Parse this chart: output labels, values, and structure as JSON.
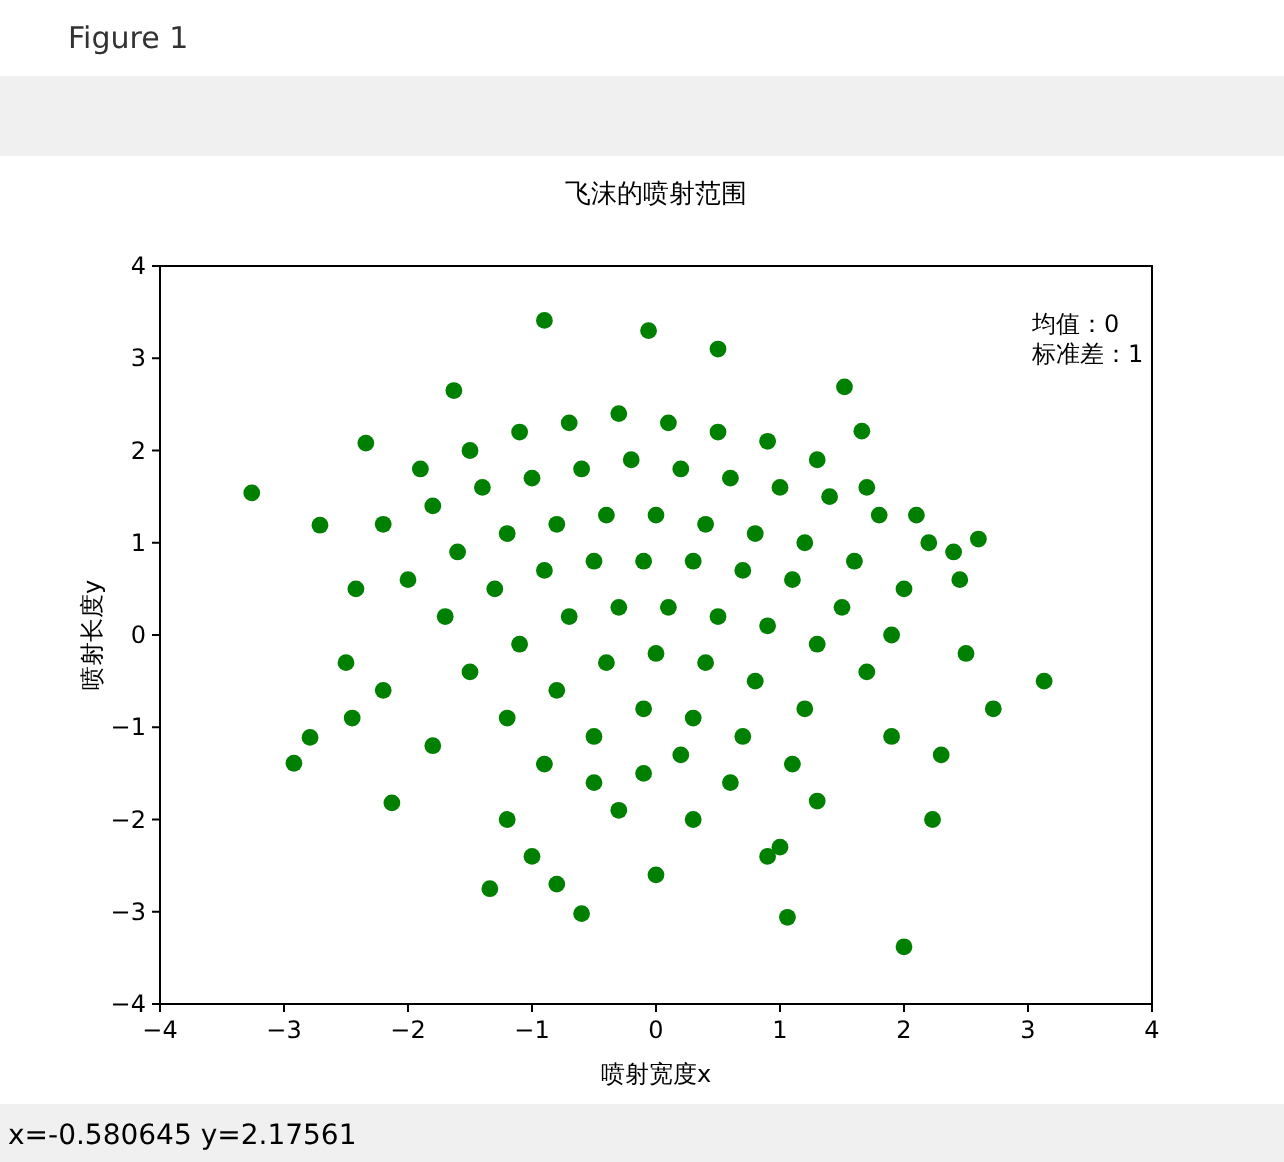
{
  "chart_data": {
    "type": "scatter",
    "title": "飞沫的喷射范围",
    "xlabel": "喷射宽度x",
    "ylabel": "喷射长度y",
    "annotations": [
      "均值：0",
      "标准差：1",
      "Figure 1",
      "x=-0.580645    y=2.17561"
    ],
    "xlim": [
      -4,
      4
    ],
    "ylim": [
      -4,
      4
    ],
    "xticks": [
      -4,
      -3,
      -2,
      -1,
      0,
      1,
      2,
      3,
      4
    ],
    "yticks": [
      -4,
      -3,
      -2,
      -1,
      0,
      1,
      2,
      3,
      4
    ],
    "grid": false,
    "marker": "circle",
    "series": [
      {
        "color": "#008000",
        "x": [
          -3.26,
          -2.92,
          -2.34,
          -0.9,
          -0.06,
          0.5,
          1.52,
          1.66,
          2.6,
          3.13,
          2.0,
          1.06,
          -0.6,
          -1.34,
          -2.13,
          -2.79,
          -2.71,
          2.23,
          2.72,
          -1.63,
          -2.42,
          -1.9,
          -1.5,
          -1.1,
          -0.7,
          -0.3,
          0.1,
          0.5,
          0.9,
          1.3,
          1.7,
          2.1,
          2.4,
          -2.2,
          -1.8,
          -1.4,
          -1.0,
          -0.6,
          -0.2,
          0.2,
          0.6,
          1.0,
          1.4,
          1.8,
          2.2,
          -2.0,
          -1.6,
          -1.2,
          -0.8,
          -0.4,
          0.0,
          0.4,
          0.8,
          1.2,
          1.6,
          2.0,
          -1.7,
          -1.3,
          -0.9,
          -0.5,
          -0.1,
          0.3,
          0.7,
          1.1,
          1.5,
          1.9,
          -1.5,
          -1.1,
          -0.7,
          -0.3,
          0.1,
          0.5,
          0.9,
          1.3,
          1.7,
          -1.2,
          -0.8,
          -0.4,
          0.0,
          0.4,
          0.8,
          1.2,
          -0.9,
          -0.5,
          -0.1,
          0.3,
          0.7,
          1.1,
          -2.5,
          2.5,
          -2.45,
          2.45,
          -1.0,
          1.0,
          0.0,
          -0.3,
          0.3,
          -1.2,
          1.3,
          -0.1,
          0.2,
          -0.5,
          0.6,
          -1.8,
          1.9,
          -2.2,
          2.3,
          -0.8,
          0.9
        ],
        "values": [
          1.54,
          -1.39,
          2.08,
          3.41,
          3.3,
          3.1,
          2.69,
          2.21,
          1.04,
          -0.5,
          -3.38,
          -3.06,
          -3.02,
          -2.75,
          -1.82,
          -1.11,
          1.19,
          -2.0,
          -0.8,
          2.65,
          0.5,
          1.8,
          2.0,
          2.2,
          2.3,
          2.4,
          2.3,
          2.2,
          2.1,
          1.9,
          1.6,
          1.3,
          0.9,
          1.2,
          1.4,
          1.6,
          1.7,
          1.8,
          1.9,
          1.8,
          1.7,
          1.6,
          1.5,
          1.3,
          1.0,
          0.6,
          0.9,
          1.1,
          1.2,
          1.3,
          1.3,
          1.2,
          1.1,
          1.0,
          0.8,
          0.5,
          0.2,
          0.5,
          0.7,
          0.8,
          0.8,
          0.8,
          0.7,
          0.6,
          0.3,
          0.0,
          -0.4,
          -0.1,
          0.2,
          0.3,
          0.3,
          0.2,
          0.1,
          -0.1,
          -0.4,
          -0.9,
          -0.6,
          -0.3,
          -0.2,
          -0.3,
          -0.5,
          -0.8,
          -1.4,
          -1.1,
          -0.8,
          -0.9,
          -1.1,
          -1.4,
          -0.3,
          -0.2,
          -0.9,
          0.6,
          -2.4,
          -2.3,
          -2.6,
          -1.9,
          -2.0,
          -2.0,
          -1.8,
          -1.5,
          -1.3,
          -1.6,
          -1.6,
          -1.2,
          -1.1,
          -0.6,
          -1.3,
          -2.7,
          -2.4
        ]
      }
    ]
  }
}
